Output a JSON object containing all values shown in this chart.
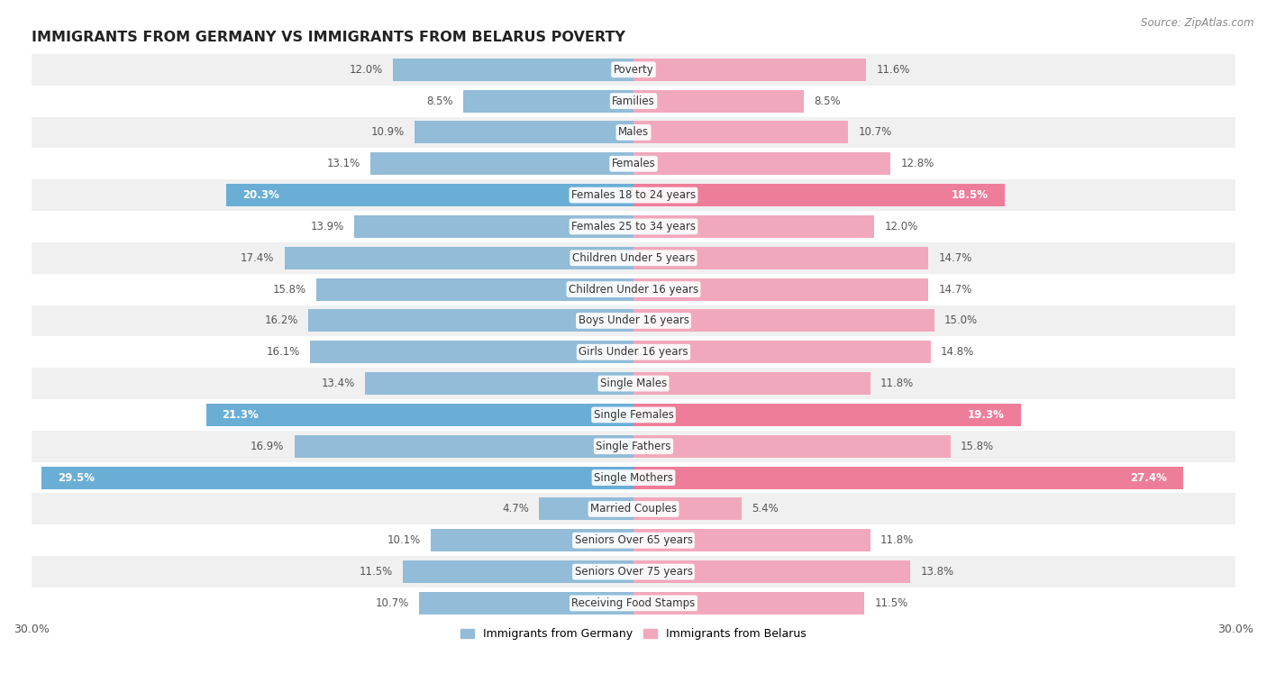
{
  "title": "IMMIGRANTS FROM GERMANY VS IMMIGRANTS FROM BELARUS POVERTY",
  "source": "Source: ZipAtlas.com",
  "categories": [
    "Poverty",
    "Families",
    "Males",
    "Females",
    "Females 18 to 24 years",
    "Females 25 to 34 years",
    "Children Under 5 years",
    "Children Under 16 years",
    "Boys Under 16 years",
    "Girls Under 16 years",
    "Single Males",
    "Single Females",
    "Single Fathers",
    "Single Mothers",
    "Married Couples",
    "Seniors Over 65 years",
    "Seniors Over 75 years",
    "Receiving Food Stamps"
  ],
  "germany_values": [
    12.0,
    8.5,
    10.9,
    13.1,
    20.3,
    13.9,
    17.4,
    15.8,
    16.2,
    16.1,
    13.4,
    21.3,
    16.9,
    29.5,
    4.7,
    10.1,
    11.5,
    10.7
  ],
  "belarus_values": [
    11.6,
    8.5,
    10.7,
    12.8,
    18.5,
    12.0,
    14.7,
    14.7,
    15.0,
    14.8,
    11.8,
    19.3,
    15.8,
    27.4,
    5.4,
    11.8,
    13.8,
    11.5
  ],
  "germany_color": "#92bcd8",
  "belarus_color": "#f2a8bc",
  "germany_highlight_color": "#6aaed6",
  "belarus_highlight_color": "#ee7d9a",
  "highlight_indices": [
    4,
    11,
    13
  ],
  "xlim": 30.0,
  "background_color": "#ffffff",
  "row_bg_even": "#f0f0f0",
  "row_bg_odd": "#ffffff",
  "legend_germany": "Immigrants from Germany",
  "legend_belarus": "Immigrants from Belarus"
}
